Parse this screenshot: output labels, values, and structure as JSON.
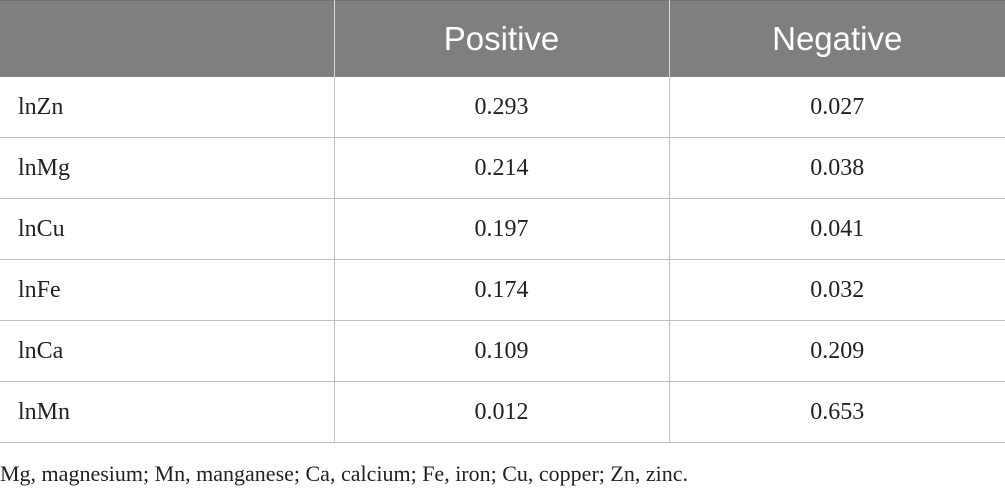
{
  "table": {
    "columns": [
      "",
      "Positive",
      "Negative"
    ],
    "rows": [
      {
        "label": "lnZn",
        "positive": "0.293",
        "negative": "0.027"
      },
      {
        "label": "lnMg",
        "positive": "0.214",
        "negative": "0.038"
      },
      {
        "label": "lnCu",
        "positive": "0.197",
        "negative": "0.041"
      },
      {
        "label": "lnFe",
        "positive": "0.174",
        "negative": "0.032"
      },
      {
        "label": "lnCa",
        "positive": "0.109",
        "negative": "0.209"
      },
      {
        "label": "lnMn",
        "positive": "0.012",
        "negative": "0.653"
      }
    ]
  },
  "footnote": "Mg, magnesium; Mn, manganese; Ca, calcium; Fe, iron; Cu, copper; Zn, zinc.",
  "colors": {
    "header_bg": "#7f7f7f",
    "header_text": "#ffffff",
    "rule": "#bfbfbf"
  }
}
